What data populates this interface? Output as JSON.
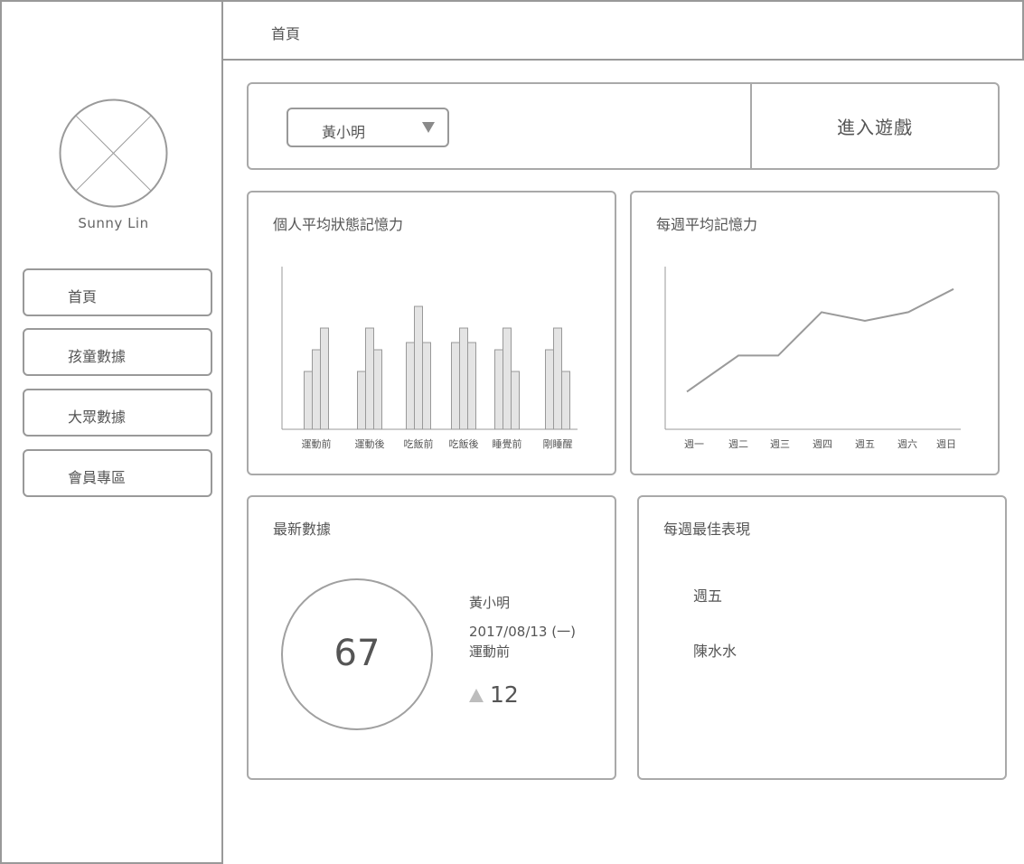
{
  "sidebar": {
    "username": "Sunny Lin",
    "items": [
      {
        "label": "首頁"
      },
      {
        "label": "孩童數據"
      },
      {
        "label": "大眾數據"
      },
      {
        "label": "會員專區"
      }
    ]
  },
  "topbar": {
    "breadcrumb": "首頁"
  },
  "selector": {
    "selected_child": "黃小明",
    "enter_game_label": "進入遊戲"
  },
  "personal_chart": {
    "title": "個人平均狀態記憶力",
    "chart_data": {
      "type": "bar",
      "categories": [
        "運動前",
        "運動後",
        "吃飯前",
        "吃飯後",
        "睡覺前",
        "剛睡醒"
      ],
      "series": [
        {
          "values": [
            4,
            4,
            6,
            6,
            5.5,
            5.5
          ]
        },
        {
          "values": [
            5.5,
            7,
            8.5,
            7,
            7,
            7
          ]
        },
        {
          "values": [
            7,
            5.5,
            6,
            6,
            4,
            4
          ]
        }
      ],
      "ylim": [
        0,
        11.25
      ]
    }
  },
  "weekly_chart": {
    "title": "每週平均記憶力",
    "chart_data": {
      "type": "line",
      "categories": [
        "週一",
        "週二",
        "週三",
        "週四",
        "週五",
        "週六",
        "週日"
      ],
      "series": [
        {
          "values": [
            2.6,
            5.1,
            5.1,
            8.1,
            7.5,
            8.1,
            9.7
          ]
        }
      ],
      "ylim": [
        0,
        11.25
      ]
    }
  },
  "latest": {
    "title": "最新數據",
    "score": "67",
    "name": "黃小明",
    "date": "2017/08/13 (一)",
    "condition": "運動前",
    "delta": "12"
  },
  "best": {
    "title": "每週最佳表現",
    "day": "週五",
    "name": "陳水水"
  },
  "colors": {
    "stroke": "#999999",
    "bar_fill": "#e4e4e4",
    "line": "#9a9a9a",
    "text": "#555555"
  }
}
